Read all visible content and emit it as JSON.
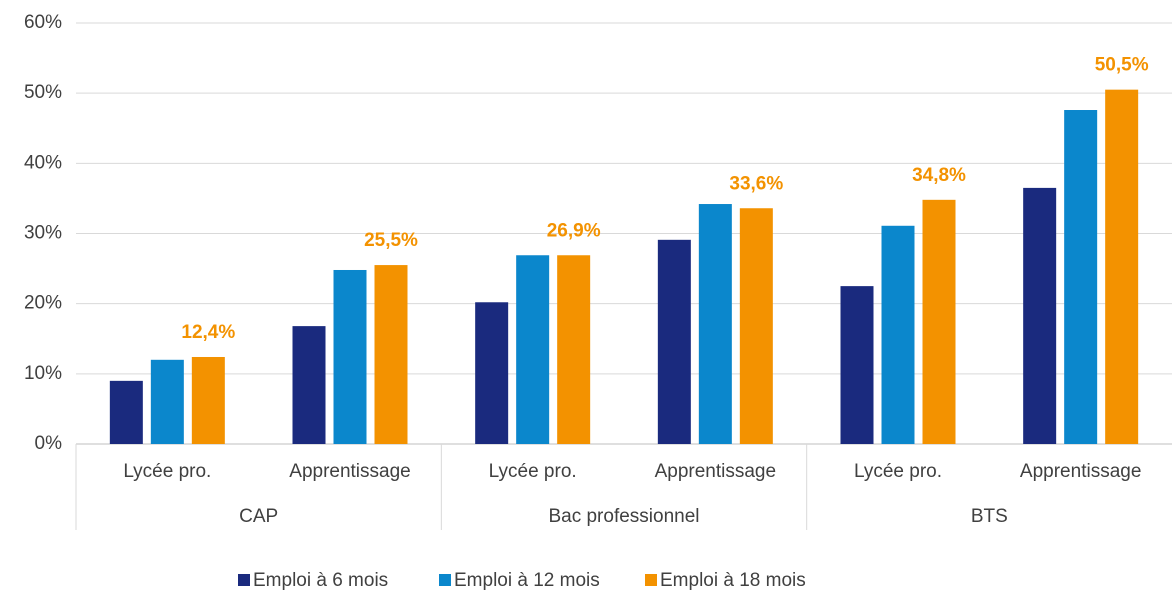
{
  "chart_data": {
    "type": "bar",
    "groups": [
      "CAP",
      "Bac professionnel",
      "BTS"
    ],
    "categories": [
      "Lycée pro.",
      "Apprentissage",
      "Lycée pro.",
      "Apprentissage",
      "Lycée pro.",
      "Apprentissage"
    ],
    "series": [
      {
        "name": "Emploi à 6 mois",
        "color": "#1a2a7e",
        "values": [
          9.0,
          16.8,
          20.2,
          29.1,
          22.5,
          36.5
        ]
      },
      {
        "name": "Emploi à 12 mois",
        "color": "#0b87cc",
        "values": [
          12.0,
          24.8,
          26.9,
          34.2,
          31.1,
          47.6
        ]
      },
      {
        "name": "Emploi à 18 mois",
        "color": "#f39200",
        "values": [
          12.4,
          25.5,
          26.9,
          33.6,
          34.8,
          50.5
        ],
        "value_labels": [
          "12,4%",
          "25,5%",
          "26,9%",
          "33,6%",
          "34,8%",
          "50,5%"
        ]
      }
    ],
    "ylim": [
      0,
      60
    ],
    "yticks": [
      {
        "value": 0,
        "label": "0%"
      },
      {
        "value": 10,
        "label": "10%"
      },
      {
        "value": 20,
        "label": "20%"
      },
      {
        "value": 30,
        "label": "30%"
      },
      {
        "value": 40,
        "label": "40%"
      },
      {
        "value": 50,
        "label": "50%"
      },
      {
        "value": 60,
        "label": "60%"
      }
    ],
    "grid": true,
    "legend": "bottom"
  }
}
